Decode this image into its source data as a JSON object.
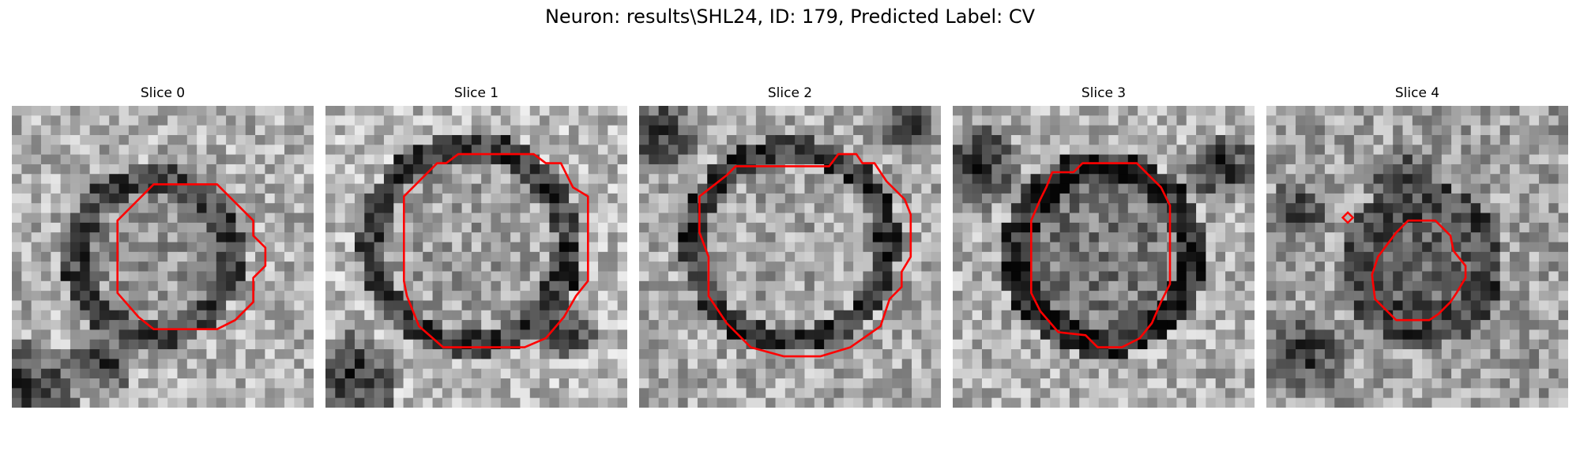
{
  "figure": {
    "title": "Neuron: results\\SHL24, ID: 179, Predicted Label: CV"
  },
  "panels": [
    {
      "title": "Slice 0"
    },
    {
      "title": "Slice 1"
    },
    {
      "title": "Slice 2"
    },
    {
      "title": "Slice 3"
    },
    {
      "title": "Slice 4"
    }
  ],
  "colors": {
    "contour": "#ff0000",
    "colormap": "gray",
    "background": "#ffffff"
  }
}
